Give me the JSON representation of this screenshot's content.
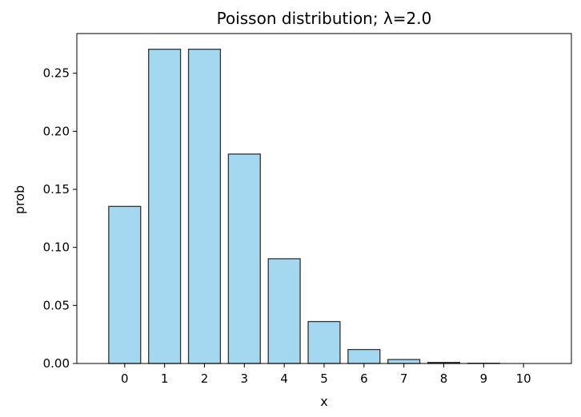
{
  "chart_data": {
    "type": "bar",
    "title": "Poisson distribution; λ=2.0",
    "xlabel": "x",
    "ylabel": "prob",
    "categories": [
      "0",
      "1",
      "2",
      "3",
      "4",
      "5",
      "6",
      "7",
      "8",
      "9",
      "10"
    ],
    "values": [
      0.1353,
      0.2707,
      0.2707,
      0.1804,
      0.0902,
      0.0361,
      0.012,
      0.0034,
      0.0009,
      0.0002,
      0.0
    ],
    "ylim": [
      0,
      0.2842
    ],
    "xlim": [
      -1.2,
      11.2
    ],
    "yticks": [
      "0.00",
      "0.05",
      "0.10",
      "0.15",
      "0.20",
      "0.25"
    ],
    "grid": false,
    "bar_color": "#a3d8f0",
    "edge_color": "#333333"
  }
}
